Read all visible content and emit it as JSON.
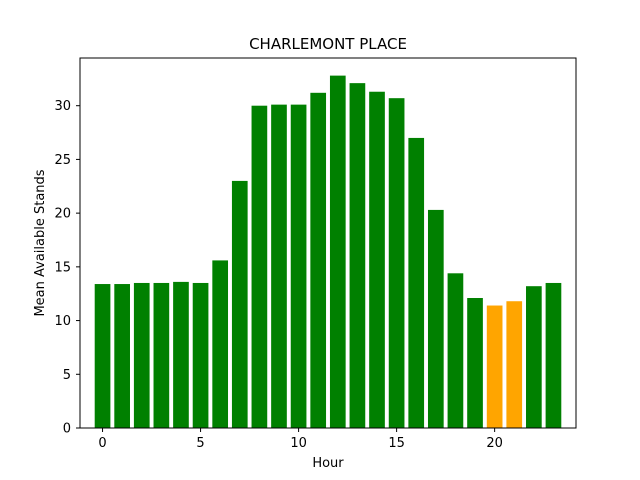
{
  "chart_data": {
    "type": "bar",
    "title": "CHARLEMONT PLACE",
    "xlabel": "Hour",
    "ylabel": "Mean Available Stands",
    "categories": [
      0,
      1,
      2,
      3,
      4,
      5,
      6,
      7,
      8,
      9,
      10,
      11,
      12,
      13,
      14,
      15,
      16,
      17,
      18,
      19,
      20,
      21,
      22,
      23
    ],
    "values": [
      13.4,
      13.4,
      13.5,
      13.5,
      13.6,
      13.5,
      15.6,
      23.0,
      30.0,
      30.1,
      30.1,
      31.2,
      32.8,
      32.1,
      31.3,
      30.7,
      27.0,
      20.3,
      14.4,
      12.1,
      11.4,
      11.8,
      13.2,
      13.5
    ],
    "bar_colors": [
      "green",
      "green",
      "green",
      "green",
      "green",
      "green",
      "green",
      "green",
      "green",
      "green",
      "green",
      "green",
      "green",
      "green",
      "green",
      "green",
      "green",
      "green",
      "green",
      "green",
      "orange",
      "orange",
      "green",
      "green"
    ],
    "xlim": [
      -1.15,
      24.15
    ],
    "ylim": [
      0,
      34.44
    ],
    "xticks": [
      0,
      5,
      10,
      15,
      20
    ],
    "yticks": [
      0,
      5,
      10,
      15,
      20,
      25,
      30
    ],
    "grid": false,
    "colors": {
      "green": "#008000",
      "orange": "#ffa500"
    }
  }
}
